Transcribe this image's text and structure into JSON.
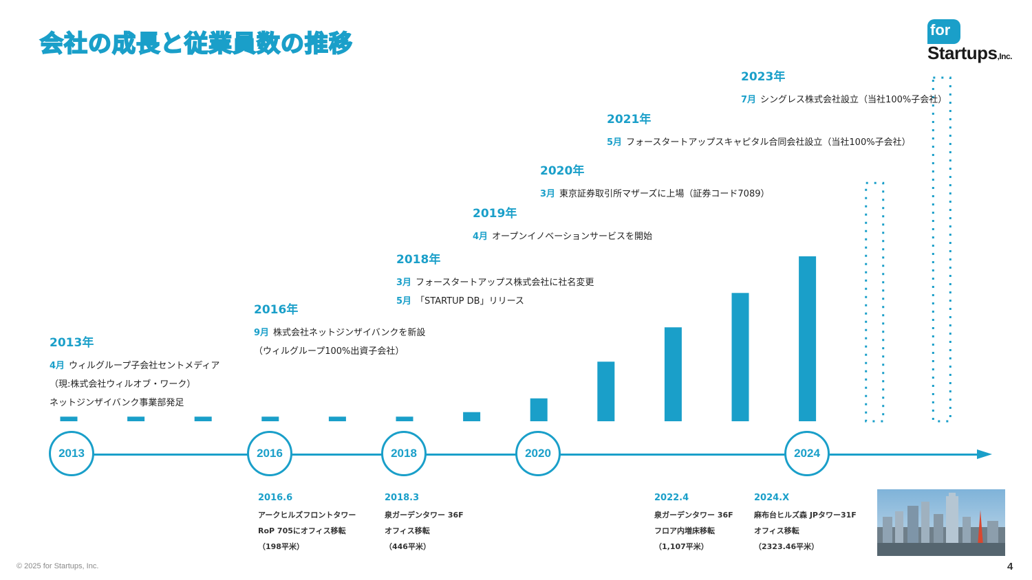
{
  "title": "会社の成長と従業員数の推移",
  "logo": {
    "for": "for",
    "startups": "Startups",
    "inc": ",Inc."
  },
  "colors": {
    "accent": "#1a9fc9",
    "text": "#333333"
  },
  "events": [
    {
      "year": "2013年",
      "lines": [
        {
          "month": "4月",
          "text": "ウィルグループ子会社セントメディア"
        },
        {
          "month": "",
          "text": "（現:株式会社ウィルオブ・ワーク）"
        },
        {
          "month": "",
          "text": "ネットジンザイバンク事業部発足"
        }
      ]
    },
    {
      "year": "2016年",
      "lines": [
        {
          "month": "9月",
          "text": "株式会社ネットジンザイバンクを新設"
        },
        {
          "month": "",
          "text": "（ウィルグループ100%出資子会社）"
        }
      ]
    },
    {
      "year": "2018年",
      "lines": [
        {
          "month": "3月",
          "text": "フォースタートアップス株式会社に社名変更"
        },
        {
          "month": "5月",
          "text": "「STARTUP DB」リリース"
        }
      ]
    },
    {
      "year": "2019年",
      "lines": [
        {
          "month": "4月",
          "text": "オープンイノベーションサービスを開始"
        }
      ]
    },
    {
      "year": "2020年",
      "lines": [
        {
          "month": "3月",
          "text": "東京証券取引所マザーズに上場（証券コード7089）"
        }
      ]
    },
    {
      "year": "2021年",
      "lines": [
        {
          "month": "5月",
          "text": "フォースタートアップスキャピタル合同会社設立（当社100%子会社）"
        }
      ]
    },
    {
      "year": "2023年",
      "lines": [
        {
          "month": "7月",
          "text": "シングレス株式会社設立（当社100%子会社）"
        }
      ]
    }
  ],
  "chart_data": {
    "type": "bar",
    "categories": [
      "2013",
      "2014",
      "2015",
      "2016",
      "2017",
      "2018",
      "2019",
      "2020",
      "2021",
      "2022",
      "2023",
      "2024",
      "2025",
      "2026"
    ],
    "values": [
      1,
      1,
      1,
      1,
      1,
      1,
      2,
      5,
      13,
      20.5,
      28,
      36,
      52,
      75
    ],
    "projected": [
      false,
      false,
      false,
      false,
      false,
      false,
      false,
      false,
      false,
      false,
      false,
      false,
      true,
      true
    ],
    "ylim": [
      0,
      75
    ],
    "grid": false,
    "legend": "none"
  },
  "timeline_years": [
    "2013",
    "2016",
    "2018",
    "2020",
    "2024"
  ],
  "offices": [
    {
      "date": "2016.6",
      "lines": [
        "アークヒルズフロントタワー",
        "RoP 705にオフィス移転",
        "（198平米）"
      ]
    },
    {
      "date": "2018.3",
      "lines": [
        "泉ガーデンタワー 36F",
        "オフィス移転",
        "（446平米）"
      ]
    },
    {
      "date": "2022.4",
      "lines": [
        "泉ガーデンタワー 36F",
        "フロア内増床移転",
        "（1,107平米）"
      ]
    },
    {
      "date": "2024.X",
      "lines": [
        "麻布台ヒルズ森 JPタワー31F",
        "オフィス移転",
        "（2323.46平米）"
      ]
    }
  ],
  "footer": "© 2025 for Startups, Inc.",
  "page_number": "4"
}
